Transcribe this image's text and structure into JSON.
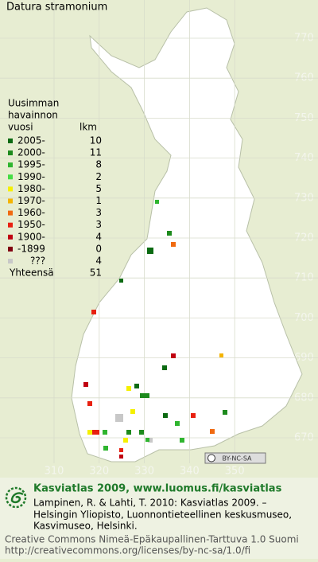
{
  "title": "Datura stramonium",
  "legend": {
    "heading": [
      "Uusimman",
      "havainnon"
    ],
    "year_header": "vuosi",
    "count_header": "lkm",
    "entries": [
      {
        "label": "2005-",
        "count": 10,
        "color": "#0b6a12"
      },
      {
        "label": "2000-",
        "count": 11,
        "color": "#1d8a1d"
      },
      {
        "label": "1995-",
        "count": 8,
        "color": "#2fb52f"
      },
      {
        "label": "1990-",
        "count": 2,
        "color": "#44dd44"
      },
      {
        "label": "1980-",
        "count": 5,
        "color": "#f5f000"
      },
      {
        "label": "1970-",
        "count": 1,
        "color": "#f4b400"
      },
      {
        "label": "1960-",
        "count": 3,
        "color": "#f06a10"
      },
      {
        "label": "1950-",
        "count": 3,
        "color": "#e82010"
      },
      {
        "label": "1900-",
        "count": 4,
        "color": "#c00010"
      },
      {
        "label": "-1899",
        "count": 0,
        "color": "#800010"
      },
      {
        "label": "???",
        "count": 4,
        "color": "#c8c8c8"
      }
    ],
    "total_label": "Yhteensä",
    "total": 51
  },
  "grid": {
    "y_labels": [
      "770",
      "760",
      "750",
      "740",
      "730",
      "720",
      "710",
      "700",
      "690",
      "680",
      "670"
    ],
    "x_labels": [
      "310",
      "320",
      "330",
      "340",
      "350"
    ]
  },
  "badge": "BY-NC-SA",
  "footer": {
    "brand": "Kasviatlas 2009, www.luomus.fi/kasviatlas",
    "citation": [
      "Lampinen, R. & Lahti, T. 2010: Kasviatlas 2009. –",
      "Helsingin Yliopisto, Luonnontieteellinen keskusmuseo,",
      "Kasvimuseo, Helsinki."
    ],
    "license": [
      "Creative Commons Nimeä-Epäkaupallinen-Tarttuva 1.0 Suomi",
      "http://creativecommons.org/licenses/by-nc-sa/1.0/fi"
    ]
  }
}
